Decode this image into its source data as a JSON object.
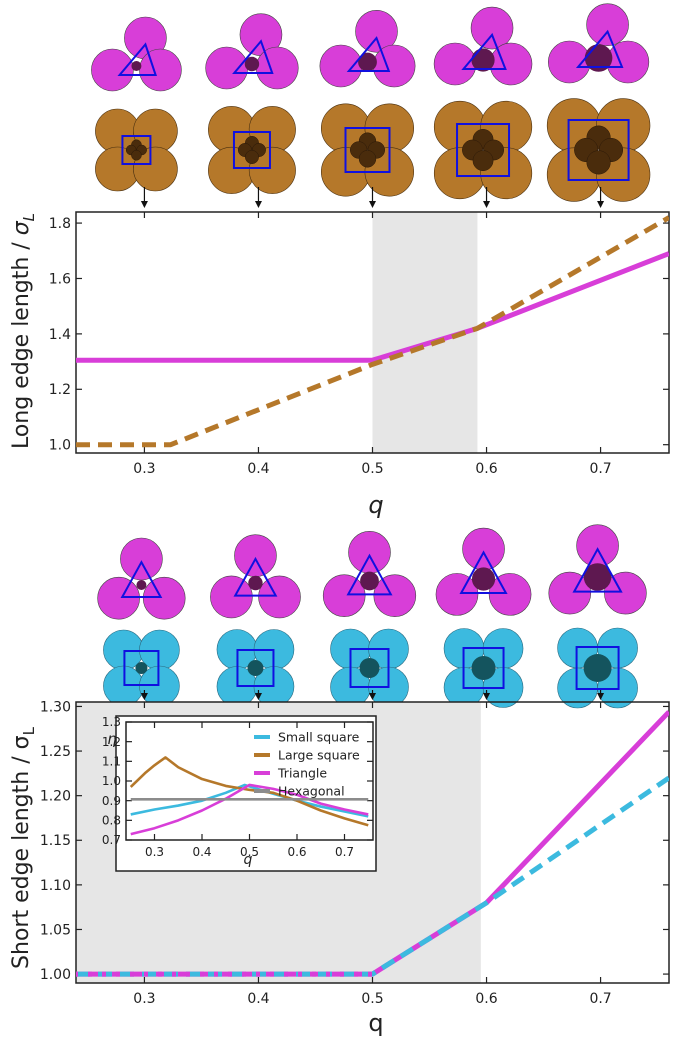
{
  "colors": {
    "triangle": "#d83ed8",
    "large_square": "#b5782a",
    "small_square": "#3cbadf",
    "hexagonal": "#8c8c8c",
    "outline_blue": "#1010e0",
    "small_particle_top": "#5e1850",
    "small_particle_large": "#4a2c0c",
    "small_particle_small": "#14545e",
    "shade": "#e6e6e6"
  },
  "chart_data": [
    {
      "type": "line",
      "ylabel_main": "Long edge length / ",
      "ylabel_sym": "σ",
      "ylabel_sub": "L",
      "xlabel": "q",
      "xlim": [
        0.24,
        0.76
      ],
      "ylim": [
        0.97,
        1.84
      ],
      "xticks": [
        0.3,
        0.4,
        0.5,
        0.6,
        0.7
      ],
      "xtick_labels": [
        "0.3",
        "0.4",
        "0.5",
        "0.6",
        "0.7"
      ],
      "yticks": [
        1.0,
        1.2,
        1.4,
        1.6,
        1.8
      ],
      "ytick_labels": [
        "1.0",
        "1.2",
        "1.4",
        "1.6",
        "1.8"
      ],
      "shaded_region": [
        0.5,
        0.592
      ],
      "series": [
        {
          "key": "triangle",
          "style": "solid",
          "x": [
            0.24,
            0.5,
            0.592,
            0.76
          ],
          "y": [
            1.305,
            1.305,
            1.42,
            1.69
          ]
        },
        {
          "key": "large_square",
          "style": "dashed",
          "x": [
            0.24,
            0.323,
            0.5,
            0.592,
            0.76
          ],
          "y": [
            1.0,
            1.0,
            1.29,
            1.42,
            1.82
          ]
        }
      ],
      "motif_q": [
        0.3,
        0.4,
        0.5,
        0.6,
        0.7
      ]
    },
    {
      "type": "line",
      "ylabel_main": "Short edge length / ",
      "ylabel_sym": "σ",
      "ylabel_sub": "L",
      "xlabel": "q",
      "xlim": [
        0.24,
        0.76
      ],
      "ylim": [
        0.99,
        1.305
      ],
      "xticks": [
        0.3,
        0.4,
        0.5,
        0.6,
        0.7
      ],
      "xtick_labels": [
        "0.3",
        "0.4",
        "0.5",
        "0.6",
        "0.7"
      ],
      "yticks": [
        1.0,
        1.05,
        1.1,
        1.15,
        1.2,
        1.25,
        1.3
      ],
      "ytick_labels": [
        "1.00",
        "1.05",
        "1.10",
        "1.15",
        "1.20",
        "1.25",
        "1.30"
      ],
      "shaded_region": [
        0.24,
        0.595
      ],
      "series": [
        {
          "key": "triangle",
          "style": "solid",
          "x": [
            0.24,
            0.5,
            0.6,
            0.76
          ],
          "y": [
            1.0,
            1.0,
            1.08,
            1.294
          ]
        },
        {
          "key": "small_square",
          "style": "dashed",
          "x": [
            0.24,
            0.5,
            0.6,
            0.76
          ],
          "y": [
            1.0,
            1.0,
            1.08,
            1.22
          ]
        }
      ],
      "motif_q": [
        0.3,
        0.4,
        0.5,
        0.6,
        0.7
      ]
    },
    {
      "type": "line",
      "inset": true,
      "ylabel": "η",
      "xlabel": "q",
      "xlim": [
        0.24,
        0.76
      ],
      "ylim": [
        0.7,
        1.3
      ],
      "xticks": [
        0.3,
        0.4,
        0.5,
        0.6,
        0.7
      ],
      "xtick_labels": [
        "0.3",
        "0.4",
        "0.5",
        "0.6",
        "0.7"
      ],
      "yticks": [
        0.7,
        0.8,
        0.9,
        1.0,
        1.1,
        1.2,
        1.3
      ],
      "ytick_labels": [
        "0.7",
        "0.8",
        "0.9",
        "1.0",
        "1.1",
        "1.2",
        "1.3"
      ],
      "legend_position": "top-right",
      "series": [
        {
          "key": "small_square",
          "name": "Small square",
          "x": [
            0.25,
            0.3,
            0.35,
            0.4,
            0.45,
            0.49,
            0.55,
            0.6,
            0.65,
            0.7,
            0.75
          ],
          "y": [
            0.83,
            0.855,
            0.875,
            0.9,
            0.94,
            0.98,
            0.935,
            0.9,
            0.87,
            0.845,
            0.82
          ]
        },
        {
          "key": "large_square",
          "name": "Large square",
          "x": [
            0.25,
            0.28,
            0.3,
            0.323,
            0.35,
            0.4,
            0.45,
            0.5,
            0.55,
            0.6,
            0.65,
            0.7,
            0.75
          ],
          "y": [
            0.97,
            1.04,
            1.08,
            1.12,
            1.07,
            1.01,
            0.975,
            0.955,
            0.94,
            0.9,
            0.85,
            0.81,
            0.775
          ]
        },
        {
          "key": "triangle",
          "name": "Triangle",
          "x": [
            0.25,
            0.3,
            0.35,
            0.4,
            0.45,
            0.5,
            0.55,
            0.6,
            0.65,
            0.7,
            0.75
          ],
          "y": [
            0.73,
            0.76,
            0.8,
            0.85,
            0.91,
            0.98,
            0.96,
            0.93,
            0.885,
            0.855,
            0.83
          ]
        },
        {
          "key": "hexagonal",
          "name": "Hexagonal",
          "x": [
            0.25,
            0.75
          ],
          "y": [
            0.907,
            0.907
          ]
        }
      ]
    }
  ]
}
